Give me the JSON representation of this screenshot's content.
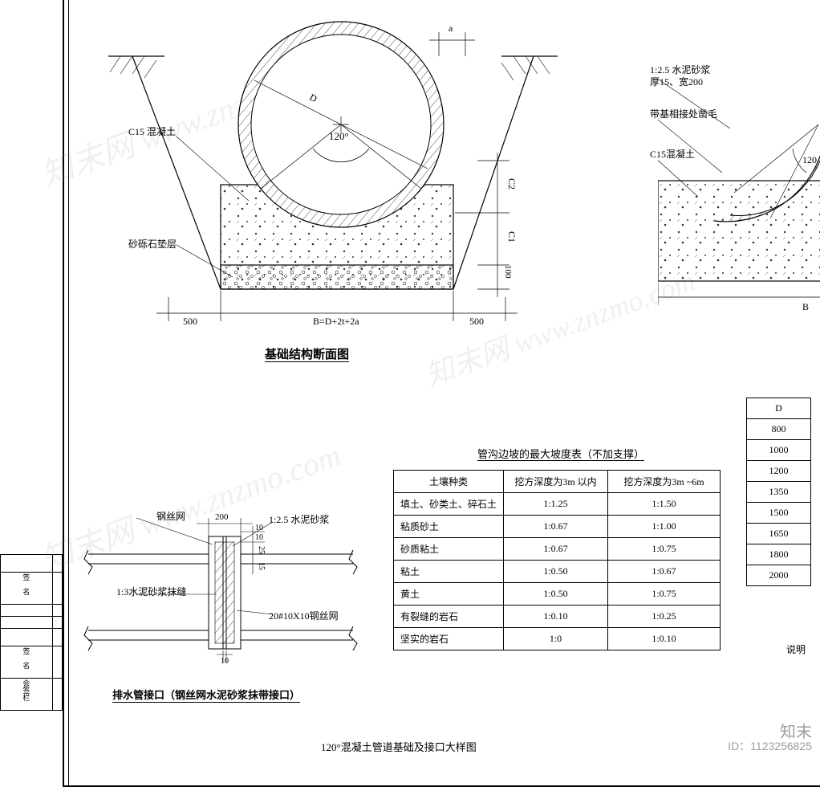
{
  "frame": {
    "stroke": "#000000",
    "fill": "#ffffff"
  },
  "cross_section": {
    "title": "基础结构断面图",
    "labels": {
      "c15": "C15 混凝土",
      "gravel": "砂砾石垫层",
      "angle": "120°",
      "B_formula": "B=D+2t+2a",
      "side_dim": "500",
      "a_label": "a",
      "c1": "C1",
      "c2": "C2",
      "bottom_100": "100",
      "D": "D"
    },
    "colors": {
      "outline": "#000000",
      "hatch": "#000000",
      "concrete_dot": "#555555"
    }
  },
  "right_section": {
    "labels": {
      "mortar": "1:2.5 水泥砂浆",
      "mortar_sub": "厚15、宽200",
      "roughen": "带基相接处凿毛",
      "c15": "C15混凝土",
      "angle": "120",
      "B": "B"
    }
  },
  "joint_detail": {
    "title": "排水管接口（钢丝网水泥砂浆抹带接口）",
    "labels": {
      "wire_mesh": "钢丝网",
      "mortar_125": "1:2.5 水泥砂浆",
      "mortar_13": "1:3水泥砂浆抹缝",
      "mesh_spec": "20#10X10钢丝网",
      "dim_200": "200",
      "dim_10a": "10",
      "dim_10b": "10",
      "dim_15": "15",
      "dim_10c": "10",
      "dim_25": "25"
    }
  },
  "slope_table": {
    "title": "管沟边坡的最大坡度表（不加支撑）",
    "columns": [
      "土壤种类",
      "挖方深度为3m 以内",
      "挖方深度为3m ~6m"
    ],
    "rows": [
      [
        "填土、砂类土、碎石土",
        "1:1.25",
        "1:1.50"
      ],
      [
        "粘质砂土",
        "1:0.67",
        "1:1.00"
      ],
      [
        "砂质粘土",
        "1:0.67",
        "1:0.75"
      ],
      [
        "粘土",
        "1:0.50",
        "1:0.67"
      ],
      [
        "黄土",
        "1:0.50",
        "1:0.75"
      ],
      [
        "有裂缝的岩石",
        "1:0.10",
        "1:0.25"
      ],
      [
        "坚实的岩石",
        "1:0",
        "1:0.10"
      ]
    ],
    "col_align": [
      "left",
      "center",
      "center"
    ]
  },
  "d_table": {
    "header": "D",
    "rows": [
      "800",
      "1000",
      "1200",
      "1350",
      "1500",
      "1650",
      "1800",
      "2000"
    ],
    "note": "说明"
  },
  "bottom_title": "120°混凝土管道基础及接口大样图",
  "watermarks": {
    "text": "知末网 www.znzmo.com"
  },
  "credit": {
    "brand": "知末",
    "id": "ID：1123256825"
  }
}
